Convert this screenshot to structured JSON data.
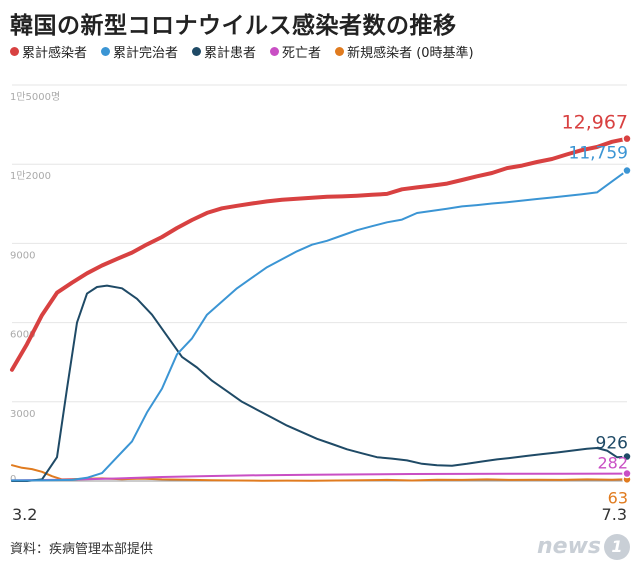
{
  "title": "韓国の新型コロナウイルス感染者数の推移",
  "legend": [
    {
      "label": "累計感染者",
      "color": "#d84141"
    },
    {
      "label": "累計完治者",
      "color": "#3b95d4"
    },
    {
      "label": "累計患者",
      "color": "#1f4a66"
    },
    {
      "label": "死亡者",
      "color": "#c94fc4"
    },
    {
      "label": "新規感染者 (0時基準)",
      "color": "#e07b1f"
    }
  ],
  "source": "資料：疾病管理本部提供",
  "logo_text": "news",
  "logo_mark": "1",
  "chart_data": {
    "type": "line",
    "xlabel": "",
    "ylabel": "",
    "x_tick_labels": [
      "3.2",
      "7.3"
    ],
    "y_tick_labels": [
      "1만5000명",
      "1만2000",
      "9000",
      "6000",
      "3000",
      "0"
    ],
    "y_ticks": [
      15000,
      12000,
      9000,
      6000,
      3000,
      0
    ],
    "ylim": [
      0,
      15000
    ],
    "grid": true,
    "x_day_range": [
      0,
      123
    ],
    "series": [
      {
        "name": "累計感染者",
        "color": "#d84141",
        "end_label": "12,967",
        "points": [
          [
            0,
            4212
          ],
          [
            3,
            5186
          ],
          [
            6,
            6284
          ],
          [
            9,
            7134
          ],
          [
            12,
            7513
          ],
          [
            15,
            7869
          ],
          [
            18,
            8162
          ],
          [
            21,
            8413
          ],
          [
            24,
            8652
          ],
          [
            27,
            8961
          ],
          [
            30,
            9241
          ],
          [
            33,
            9583
          ],
          [
            36,
            9887
          ],
          [
            39,
            10156
          ],
          [
            42,
            10331
          ],
          [
            45,
            10423
          ],
          [
            48,
            10512
          ],
          [
            51,
            10591
          ],
          [
            54,
            10652
          ],
          [
            57,
            10694
          ],
          [
            60,
            10728
          ],
          [
            63,
            10765
          ],
          [
            66,
            10780
          ],
          [
            69,
            10806
          ],
          [
            72,
            10840
          ],
          [
            75,
            10874
          ],
          [
            78,
            11050
          ],
          [
            81,
            11122
          ],
          [
            84,
            11190
          ],
          [
            87,
            11265
          ],
          [
            90,
            11402
          ],
          [
            93,
            11541
          ],
          [
            96,
            11668
          ],
          [
            99,
            11852
          ],
          [
            102,
            11947
          ],
          [
            105,
            12085
          ],
          [
            108,
            12198
          ],
          [
            111,
            12373
          ],
          [
            114,
            12535
          ],
          [
            117,
            12653
          ],
          [
            120,
            12850
          ],
          [
            123,
            12967
          ]
        ]
      },
      {
        "name": "累計完治者",
        "color": "#3b95d4",
        "end_label": "11,759",
        "points": [
          [
            0,
            22
          ],
          [
            6,
            24
          ],
          [
            12,
            41
          ],
          [
            15,
            120
          ],
          [
            18,
            300
          ],
          [
            21,
            900
          ],
          [
            24,
            1500
          ],
          [
            27,
            2600
          ],
          [
            30,
            3500
          ],
          [
            33,
            4800
          ],
          [
            36,
            5400
          ],
          [
            39,
            6300
          ],
          [
            42,
            6800
          ],
          [
            45,
            7300
          ],
          [
            48,
            7700
          ],
          [
            51,
            8100
          ],
          [
            54,
            8400
          ],
          [
            57,
            8700
          ],
          [
            60,
            8950
          ],
          [
            63,
            9100
          ],
          [
            66,
            9300
          ],
          [
            69,
            9500
          ],
          [
            72,
            9650
          ],
          [
            75,
            9800
          ],
          [
            78,
            9900
          ],
          [
            81,
            10150
          ],
          [
            84,
            10230
          ],
          [
            87,
            10310
          ],
          [
            90,
            10400
          ],
          [
            93,
            10450
          ],
          [
            96,
            10510
          ],
          [
            99,
            10560
          ],
          [
            102,
            10620
          ],
          [
            105,
            10680
          ],
          [
            108,
            10740
          ],
          [
            111,
            10800
          ],
          [
            114,
            10860
          ],
          [
            117,
            10930
          ],
          [
            120,
            11350
          ],
          [
            123,
            11759
          ]
        ]
      },
      {
        "name": "累計患者",
        "color": "#1f4a66",
        "end_label": "926",
        "points": [
          [
            0,
            0
          ],
          [
            3,
            0
          ],
          [
            6,
            60
          ],
          [
            9,
            900
          ],
          [
            11,
            3500
          ],
          [
            13,
            6000
          ],
          [
            15,
            7100
          ],
          [
            17,
            7350
          ],
          [
            19,
            7400
          ],
          [
            22,
            7300
          ],
          [
            25,
            6900
          ],
          [
            28,
            6300
          ],
          [
            31,
            5500
          ],
          [
            34,
            4700
          ],
          [
            37,
            4300
          ],
          [
            40,
            3800
          ],
          [
            43,
            3400
          ],
          [
            46,
            3000
          ],
          [
            49,
            2700
          ],
          [
            52,
            2400
          ],
          [
            55,
            2100
          ],
          [
            58,
            1850
          ],
          [
            61,
            1600
          ],
          [
            64,
            1400
          ],
          [
            67,
            1200
          ],
          [
            70,
            1050
          ],
          [
            73,
            900
          ],
          [
            76,
            850
          ],
          [
            79,
            780
          ],
          [
            82,
            650
          ],
          [
            85,
            600
          ],
          [
            88,
            580
          ],
          [
            91,
            650
          ],
          [
            94,
            740
          ],
          [
            97,
            820
          ],
          [
            100,
            880
          ],
          [
            103,
            950
          ],
          [
            106,
            1020
          ],
          [
            109,
            1080
          ],
          [
            112,
            1150
          ],
          [
            115,
            1220
          ],
          [
            117,
            1250
          ],
          [
            119,
            1150
          ],
          [
            121,
            900
          ],
          [
            123,
            926
          ]
        ]
      },
      {
        "name": "死亡者",
        "color": "#c94fc4",
        "end_label": "282",
        "points": [
          [
            0,
            22
          ],
          [
            10,
            50
          ],
          [
            20,
            90
          ],
          [
            30,
            150
          ],
          [
            40,
            190
          ],
          [
            50,
            220
          ],
          [
            60,
            240
          ],
          [
            70,
            250
          ],
          [
            80,
            265
          ],
          [
            90,
            270
          ],
          [
            100,
            275
          ],
          [
            110,
            278
          ],
          [
            123,
            282
          ]
        ]
      },
      {
        "name": "新規感染者 (0時基準)",
        "color": "#e07b1f",
        "end_label": "63",
        "points": [
          [
            0,
            600
          ],
          [
            2,
            500
          ],
          [
            4,
            450
          ],
          [
            6,
            350
          ],
          [
            8,
            180
          ],
          [
            10,
            60
          ],
          [
            14,
            80
          ],
          [
            18,
            100
          ],
          [
            22,
            70
          ],
          [
            26,
            90
          ],
          [
            30,
            60
          ],
          [
            35,
            50
          ],
          [
            40,
            30
          ],
          [
            45,
            20
          ],
          [
            50,
            10
          ],
          [
            55,
            15
          ],
          [
            60,
            10
          ],
          [
            65,
            20
          ],
          [
            70,
            30
          ],
          [
            75,
            40
          ],
          [
            80,
            20
          ],
          [
            85,
            50
          ],
          [
            90,
            40
          ],
          [
            95,
            60
          ],
          [
            100,
            40
          ],
          [
            105,
            50
          ],
          [
            110,
            40
          ],
          [
            115,
            60
          ],
          [
            120,
            50
          ],
          [
            123,
            63
          ]
        ]
      }
    ]
  }
}
